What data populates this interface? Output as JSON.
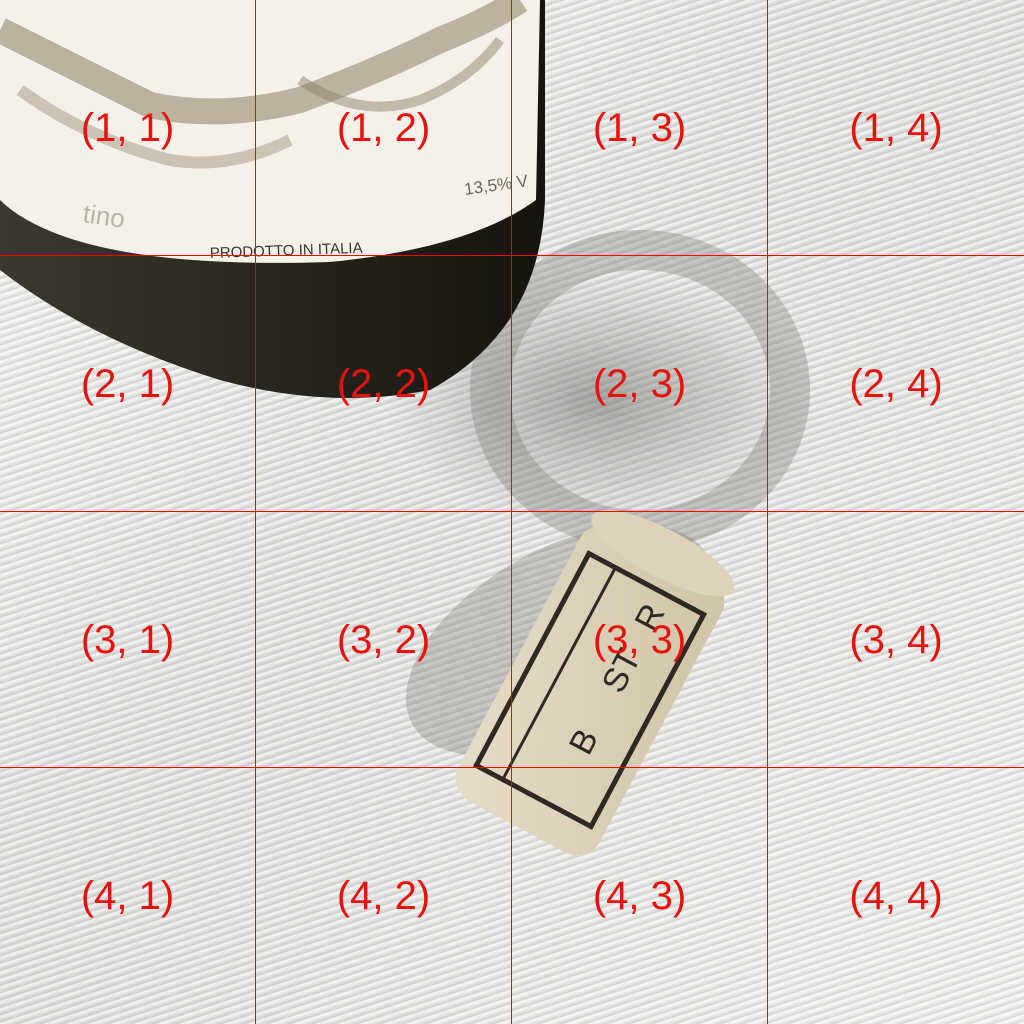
{
  "photo": {
    "label_production_text": "PRODOTTO IN ITALIA",
    "label_alcohol_text": "13,5% V",
    "label_partial_word": "tino",
    "cork_letters": [
      "ST",
      "B",
      "R"
    ],
    "colors": {
      "grid_line": "#ff0000",
      "grid_label": "#e8120c",
      "bottle_glass": "#2c2a24",
      "bottle_label": "#f4f1ea",
      "cork": "#d9cfb8"
    }
  },
  "grid": {
    "cells": [
      {
        "label": "(1, 1)"
      },
      {
        "label": "(1, 2)"
      },
      {
        "label": "(1, 3)"
      },
      {
        "label": "(1, 4)"
      },
      {
        "label": "(2, 1)"
      },
      {
        "label": "(2, 2)"
      },
      {
        "label": "(2, 3)"
      },
      {
        "label": "(2, 4)"
      },
      {
        "label": "(3, 1)"
      },
      {
        "label": "(3, 2)"
      },
      {
        "label": "(3, 3)"
      },
      {
        "label": "(3, 4)"
      },
      {
        "label": "(4, 1)"
      },
      {
        "label": "(4, 2)"
      },
      {
        "label": "(4, 3)"
      },
      {
        "label": "(4, 4)"
      }
    ]
  }
}
